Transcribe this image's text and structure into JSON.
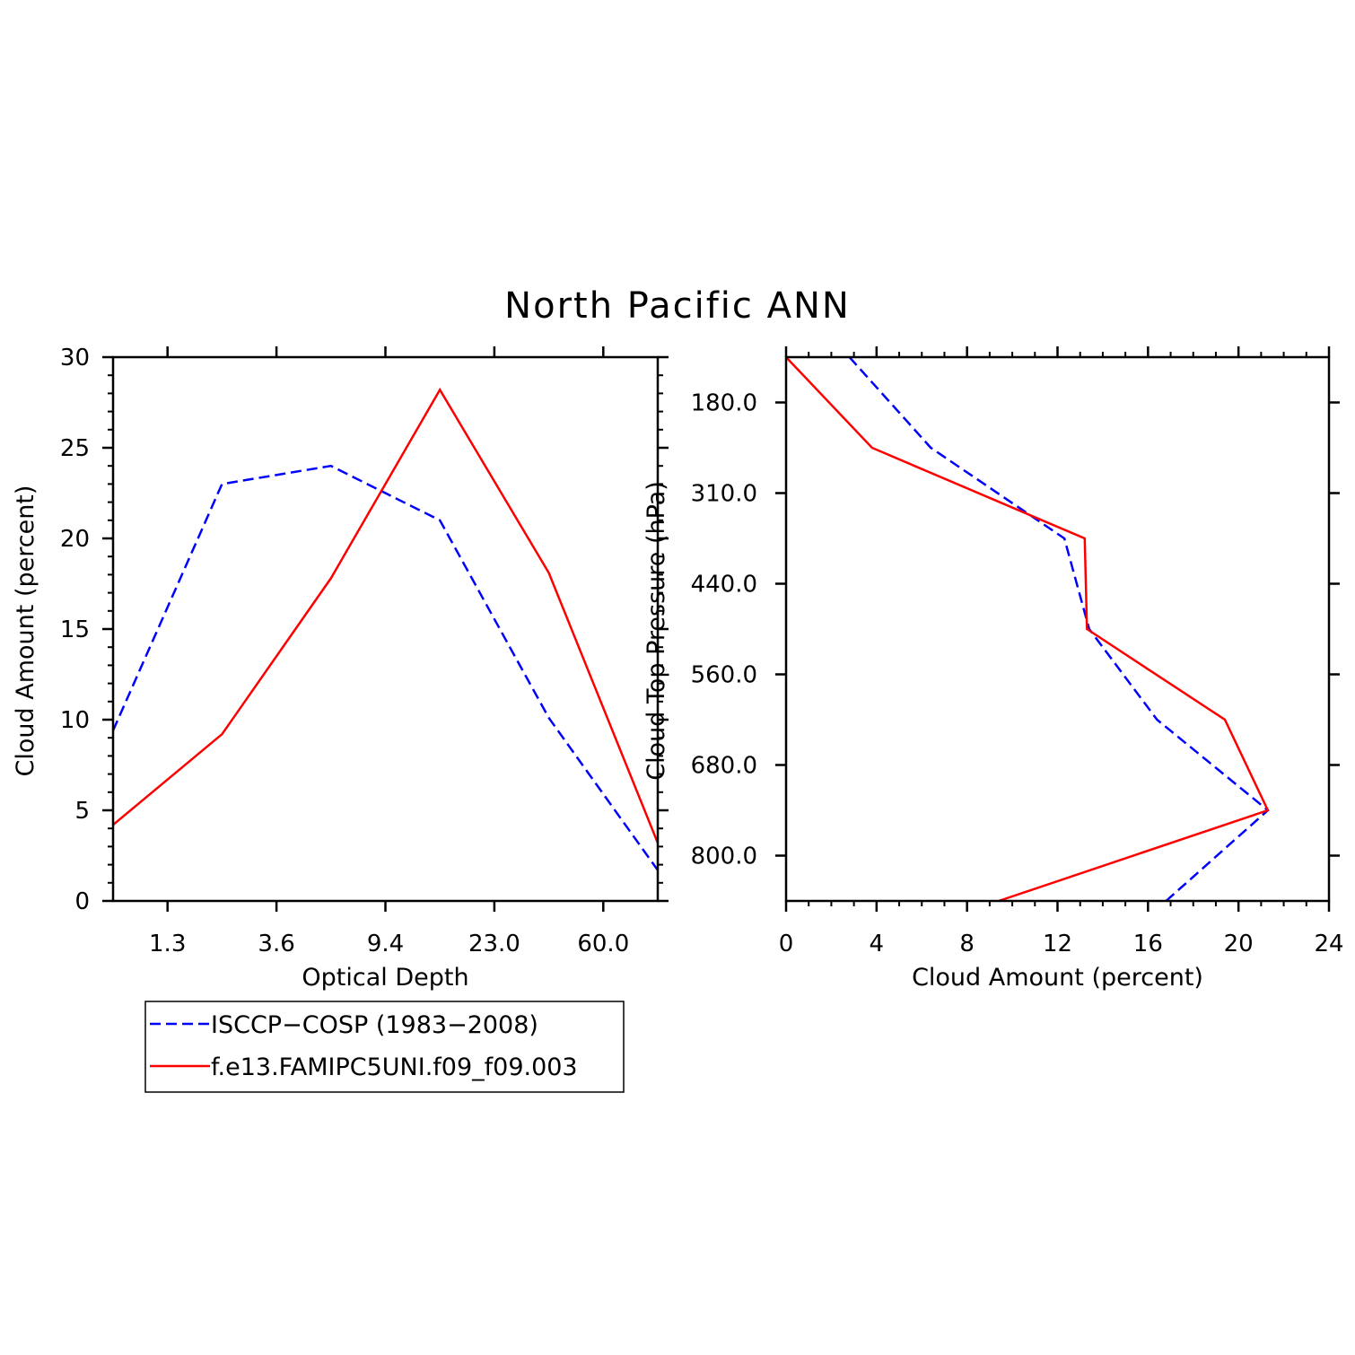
{
  "title": "North Pacific ANN",
  "colors": {
    "obs": "#0000ff",
    "model": "#ff0000",
    "axes": "#000000"
  },
  "legend": {
    "entries": [
      {
        "label": "ISCCP−COSP (1983−2008)",
        "color": "#0000ff",
        "style": "dashed"
      },
      {
        "label": "f.e13.FAMIPC5UNI.f09_f09.003",
        "color": "#ff0000",
        "style": "solid"
      }
    ]
  },
  "chart_data": [
    {
      "type": "line",
      "xlabel": "Optical Depth",
      "ylabel": "Cloud Amount (percent)",
      "x_tick_labels": [
        "1.3",
        "3.6",
        "9.4",
        "23.0",
        "60.0"
      ],
      "y_ticks": [
        0,
        5,
        10,
        15,
        20,
        25,
        30
      ],
      "ylim": [
        0,
        30
      ],
      "series": [
        {
          "name": "ISCCP−COSP (1983−2008)",
          "style": "dashed",
          "color": "#0000ff",
          "values": [
            9.4,
            23.0,
            24.0,
            21.0,
            10.1,
            1.7
          ]
        },
        {
          "name": "f.e13.FAMIPC5UNI.f09_f09.003",
          "style": "solid",
          "color": "#ff0000",
          "values": [
            4.2,
            9.2,
            17.8,
            28.2,
            18.1,
            3.2
          ]
        }
      ]
    },
    {
      "type": "line",
      "xlabel": "Cloud Amount (percent)",
      "ylabel": "Cloud Top Pressure (hPa)",
      "x_ticks": [
        0,
        4,
        8,
        12,
        16,
        20,
        24
      ],
      "xlim": [
        0,
        24
      ],
      "y_tick_labels": [
        "180.0",
        "310.0",
        "440.0",
        "560.0",
        "680.0",
        "800.0"
      ],
      "series": [
        {
          "name": "ISCCP−COSP (1983−2008)",
          "style": "dashed",
          "color": "#0000ff",
          "values": [
            2.8,
            6.4,
            12.3,
            13.4,
            16.4,
            21.3,
            16.8
          ]
        },
        {
          "name": "f.e13.FAMIPC5UNI.f09_f09.003",
          "style": "solid",
          "color": "#ff0000",
          "values": [
            0.0,
            3.8,
            13.2,
            13.3,
            19.4,
            21.3,
            9.4
          ]
        }
      ]
    }
  ]
}
